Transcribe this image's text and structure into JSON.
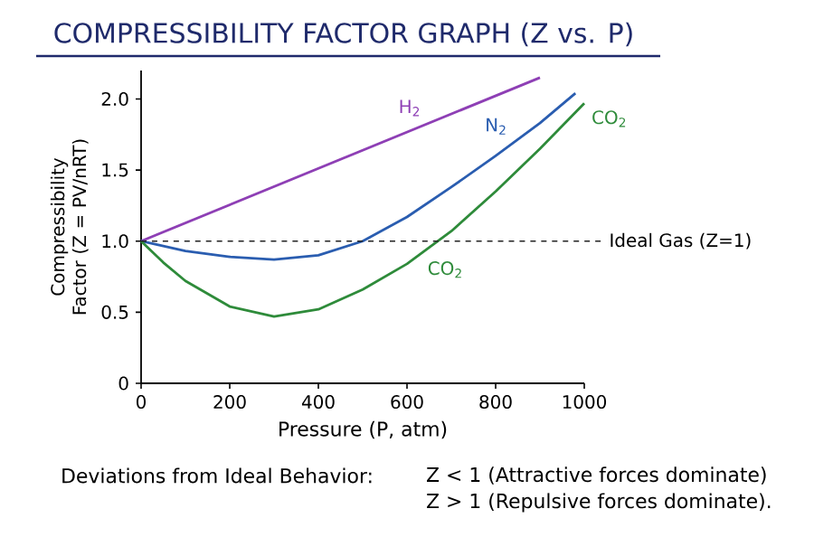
{
  "chart_data": {
    "type": "line",
    "title": "COMPRESSIBILITY FACTOR GRAPH (Z vs. P)",
    "xlabel": "Pressure (P, atm)",
    "ylabel": "Compressibility Factor (Z = PV/nRT)",
    "xlim": [
      0,
      1000
    ],
    "ylim": [
      0,
      2.2
    ],
    "xticks": [
      0,
      200,
      400,
      600,
      800,
      1000
    ],
    "yticks": [
      0,
      0.5,
      {
        "value": 1,
        "label": "1.0"
      },
      1.5,
      {
        "value": 2,
        "label": "2.0"
      }
    ],
    "legend": false,
    "grid": false,
    "marker": "none",
    "line_style": "solid",
    "series": [
      {
        "name": "H$_{2}$",
        "color": "#8e3fb5",
        "x": [
          0,
          900
        ],
        "values": [
          1.0,
          2.15
        ]
      },
      {
        "name": "N$_{2}$",
        "color": "#2a5db0",
        "x": [
          0,
          100,
          200,
          300,
          400,
          500,
          600,
          700,
          800,
          900,
          980
        ],
        "values": [
          1.0,
          0.93,
          0.89,
          0.87,
          0.9,
          1.0,
          1.17,
          1.38,
          1.6,
          1.83,
          2.04
        ]
      },
      {
        "name": "CO$_{2}$",
        "color": "#2e8b3a",
        "x": [
          0,
          50,
          100,
          200,
          300,
          400,
          500,
          600,
          700,
          800,
          900,
          1000
        ],
        "values": [
          1.0,
          0.85,
          0.72,
          0.54,
          0.47,
          0.52,
          0.66,
          0.84,
          1.07,
          1.35,
          1.65,
          1.97
        ]
      }
    ],
    "ref_lines": [
      {
        "axis": "y",
        "value": 1,
        "label": "Ideal Gas (Z=1)",
        "color": "#222222",
        "line_style": "dashed"
      }
    ],
    "annotations": [
      "CO$_{2}$",
      "Deviations from Ideal Behavior:",
      "Z < 1 (Attractive forces dominate)",
      "Z > 1 (Repulsive forces dominate)."
    ]
  }
}
